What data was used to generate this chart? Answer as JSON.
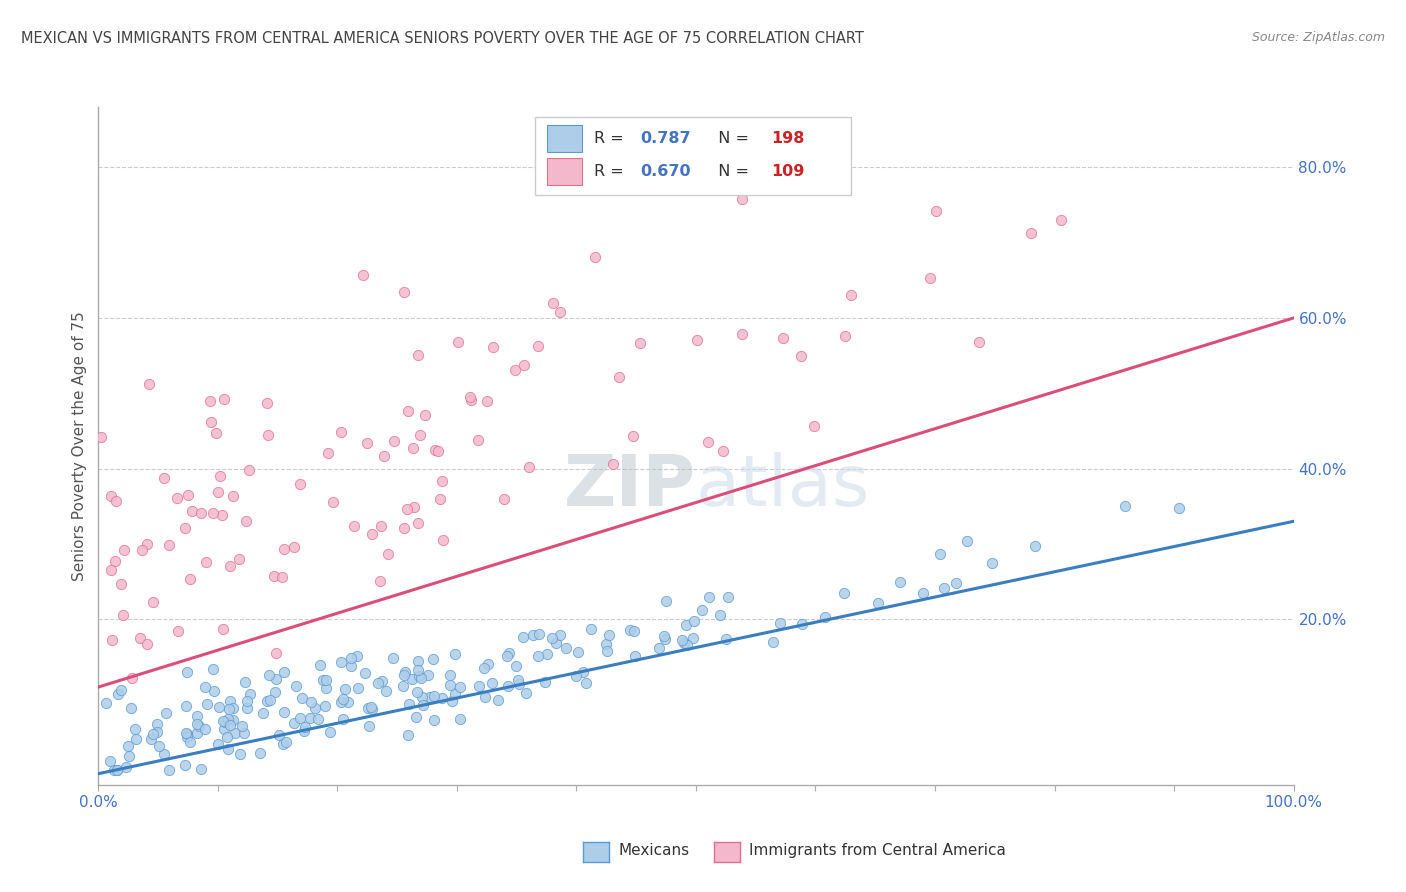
{
  "title": "MEXICAN VS IMMIGRANTS FROM CENTRAL AMERICA SENIORS POVERTY OVER THE AGE OF 75 CORRELATION CHART",
  "source": "Source: ZipAtlas.com",
  "ylabel": "Seniors Poverty Over the Age of 75",
  "xlim": [
    0.0,
    1.0
  ],
  "ylim": [
    -0.02,
    0.88
  ],
  "legend_R1": "0.787",
  "legend_N1": "198",
  "legend_R2": "0.670",
  "legend_N2": "109",
  "blue_scatter_color": "#aecde8",
  "blue_edge_color": "#5b9bd5",
  "pink_scatter_color": "#f4b8cc",
  "pink_edge_color": "#e07090",
  "blue_line_color": "#3a7ebf",
  "pink_line_color": "#d94f7a",
  "title_color": "#444444",
  "source_color": "#888888",
  "axis_label_color": "#555555",
  "tick_color": "#4472c4",
  "red_color": "#cc2222",
  "grid_color": "#cccccc",
  "background_color": "#ffffff",
  "watermark_color": "#ccdaeb",
  "seed": 42,
  "n_blue": 198,
  "n_pink": 109,
  "blue_R": 0.787,
  "pink_R": 0.67,
  "blue_line_x": [
    0.0,
    1.0
  ],
  "blue_line_y": [
    -0.005,
    0.33
  ],
  "pink_line_x": [
    0.0,
    1.0
  ],
  "pink_line_y": [
    0.11,
    0.6
  ]
}
